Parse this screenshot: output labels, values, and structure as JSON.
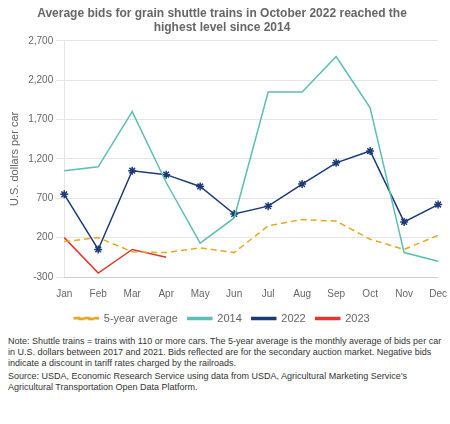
{
  "chart_data": {
    "type": "line",
    "title": "Average bids for grain shuttle trains in October 2022 reached the\nhighest level since 2014",
    "ylabel": "U.S. dollars per car",
    "categories": [
      "Jan",
      "Feb",
      "Mar",
      "Apr",
      "May",
      "Jun",
      "Jul",
      "Aug",
      "Sep",
      "Oct",
      "Nov",
      "Dec"
    ],
    "series": [
      {
        "name": "5-year average",
        "color": "#E8A820",
        "line_style": "dashed",
        "marker": "none",
        "values": [
          150,
          200,
          20,
          10,
          70,
          10,
          350,
          430,
          410,
          180,
          50,
          230
        ]
      },
      {
        "name": "2014",
        "color": "#5BBFB5",
        "line_style": "solid",
        "marker": "none",
        "values": [
          1050,
          1100,
          1800,
          900,
          130,
          450,
          2050,
          2050,
          2500,
          1850,
          10,
          -100
        ]
      },
      {
        "name": "2022",
        "color": "#1B3A7A",
        "line_style": "solid",
        "marker": "star",
        "values": [
          750,
          50,
          1050,
          1000,
          850,
          500,
          600,
          880,
          1150,
          1300,
          400,
          620
        ]
      },
      {
        "name": "2023",
        "color": "#E8342A",
        "line_style": "solid",
        "marker": "none",
        "values": [
          200,
          -250,
          50,
          -50,
          null,
          null,
          null,
          null,
          null,
          null,
          null,
          null
        ]
      }
    ],
    "ylim": [
      -300,
      2700
    ],
    "yticks": [
      -300,
      200,
      700,
      {
        "value": 1200,
        "label": "1,200"
      },
      {
        "value": 1700,
        "label": "1,700"
      },
      {
        "value": 2200,
        "label": "2,200"
      },
      {
        "value": 2700,
        "label": "2,700"
      }
    ],
    "grid": true,
    "legend": "bottom",
    "annotations": [
      "Note: Shuttle trains = trains with 110 or more cars. The 5-year average is the monthly average of bids per car in U.S. dollars between 2017 and 2021. Bids reflected are for the secondary auction market. Negative bids indicate a discount in tariff rates charged by the railroads.",
      "Source: USDA, Economic Research Service using data from USDA, Agricultural Marketing Service’s Agricultural Transportation Open Data Platform."
    ]
  }
}
